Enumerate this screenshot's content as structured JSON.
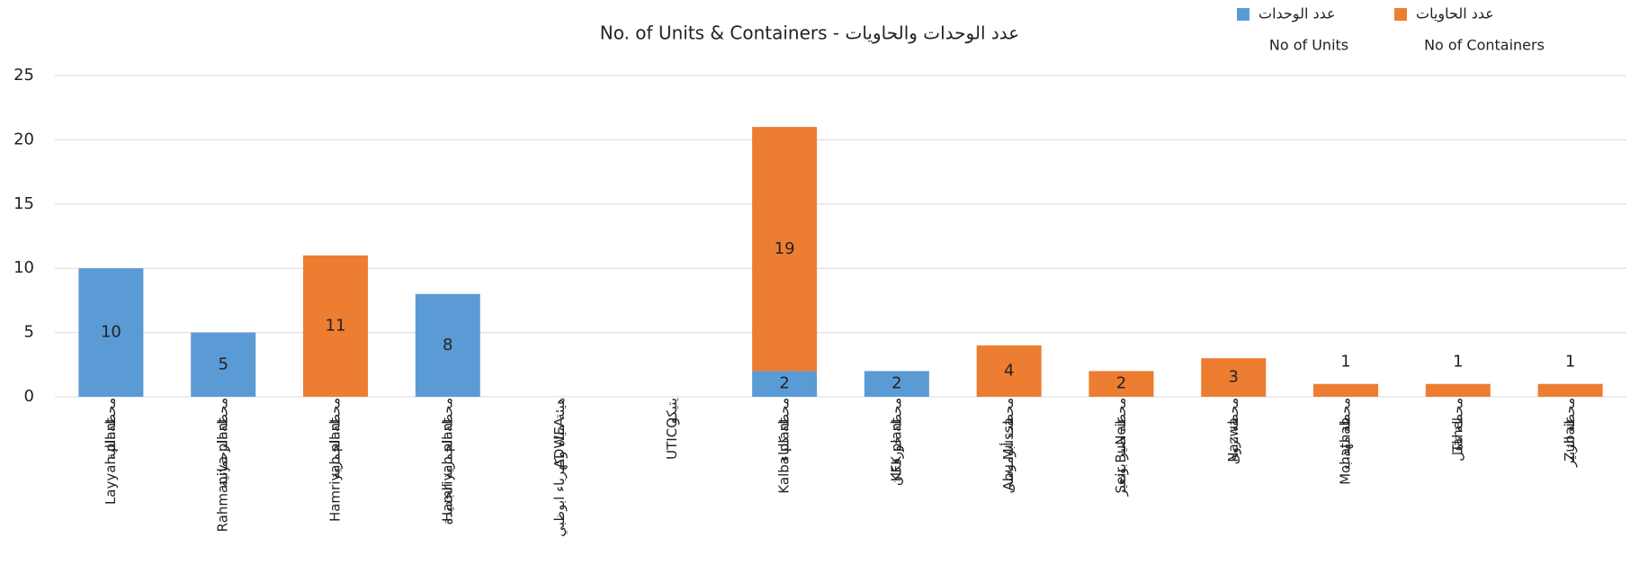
{
  "chart_data": {
    "type": "stacked_bar",
    "title": "No. of Units & Containers - عدد الوحدات والحاويات",
    "categories": [
      "Layyah plant",
      "Rahmaniya plant",
      "Hamriyah plant",
      "Hamriyah plant",
      "ADWEA",
      "UTICO",
      "Kalba plant",
      "KFK plant",
      "Abu Mussa",
      "Seir BuNeir",
      "Nazwa",
      "Mohathab",
      "Tahel",
      "Zubair"
    ],
    "categories_ar": [
      "محطة اللية",
      "محطة الرحمانية",
      "محطة الحمرية",
      "محطة الحمرية الجديدة",
      "هيئة مياه وكهرباء ابوظبي",
      "يتيكو",
      "محطة كلباء",
      "محطة خورفكان",
      "محطت أبوموسى",
      "محطة صير بونعير",
      "محطة نزوى",
      "محطة مهذب",
      "محطة تاهل",
      "محطة الزبير"
    ],
    "series": [
      {
        "name": "عدد الوحدات",
        "label": "No of Units",
        "color": "#5b9bd5",
        "values": [
          10,
          5,
          null,
          8,
          null,
          null,
          2,
          2,
          null,
          null,
          null,
          null,
          null,
          null
        ]
      },
      {
        "name": "عدد الحاويات",
        "label": "No of Containers",
        "color": "#ed7d31",
        "values": [
          null,
          null,
          11,
          null,
          null,
          null,
          19,
          null,
          4,
          2,
          3,
          1,
          1,
          1
        ]
      }
    ],
    "ylim": [
      0,
      25
    ],
    "yticks": [
      0,
      5,
      10,
      15,
      20,
      25
    ],
    "grid": true,
    "legend": "top-right"
  }
}
